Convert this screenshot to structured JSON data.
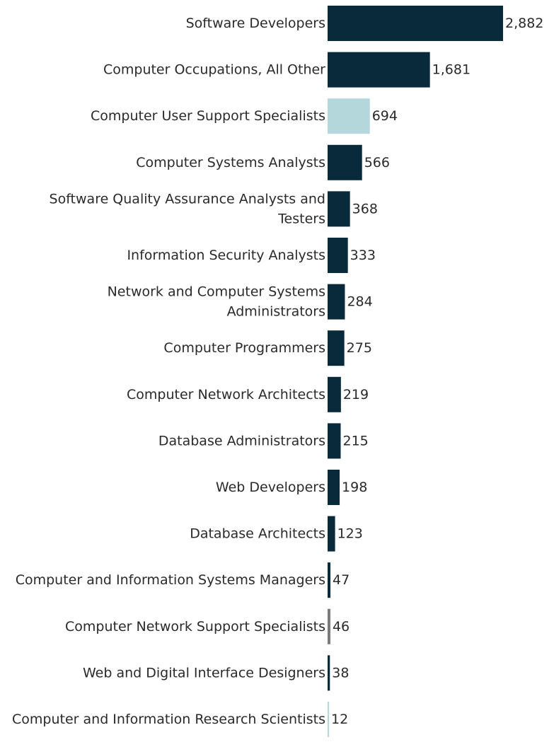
{
  "chart_data": {
    "type": "bar",
    "orientation": "horizontal",
    "title": "",
    "xlabel": "",
    "ylabel": "",
    "grid": false,
    "legend": "none",
    "xlim": [
      0,
      2882
    ],
    "categories": [
      "Software Developers",
      "Computer Occupations, All Other",
      "Computer User Support Specialists",
      "Computer Systems Analysts",
      "Software Quality Assurance Analysts and Testers",
      "Information Security Analysts",
      "Network and Computer Systems Administrators",
      "Computer Programmers",
      "Computer Network Architects",
      "Database Administrators",
      "Web Developers",
      "Database Architects",
      "Computer and Information Systems Managers",
      "Computer Network Support Specialists",
      "Web and Digital Interface Designers",
      "Computer and Information Research Scientists"
    ],
    "label_lines": [
      [
        "Software Developers"
      ],
      [
        "Computer Occupations, All Other"
      ],
      [
        "Computer User Support Specialists"
      ],
      [
        "Computer Systems Analysts"
      ],
      [
        "Software Quality Assurance Analysts and",
        "Testers"
      ],
      [
        "Information Security Analysts"
      ],
      [
        "Network and Computer Systems",
        "Administrators"
      ],
      [
        "Computer Programmers"
      ],
      [
        "Computer Network Architects"
      ],
      [
        "Database Administrators"
      ],
      [
        "Web Developers"
      ],
      [
        "Database Architects"
      ],
      [
        "Computer and Information Systems Managers"
      ],
      [
        "Computer Network Support Specialists"
      ],
      [
        "Web and Digital Interface Designers"
      ],
      [
        "Computer and Information Research Scientists"
      ]
    ],
    "values": [
      2882,
      1681,
      694,
      566,
      368,
      333,
      284,
      275,
      219,
      215,
      198,
      123,
      47,
      46,
      38,
      12
    ],
    "value_labels": [
      "2,882",
      "1,681",
      "694",
      "566",
      "368",
      "333",
      "284",
      "275",
      "219",
      "215",
      "198",
      "123",
      "47",
      "46",
      "38",
      "12"
    ],
    "colors": [
      "#082a3a",
      "#082a3a",
      "#b4d7dc",
      "#082a3a",
      "#082a3a",
      "#082a3a",
      "#082a3a",
      "#082a3a",
      "#082a3a",
      "#082a3a",
      "#082a3a",
      "#082a3a",
      "#082a3a",
      "#7a7a7a",
      "#082a3a",
      "#b4d7dc"
    ]
  }
}
